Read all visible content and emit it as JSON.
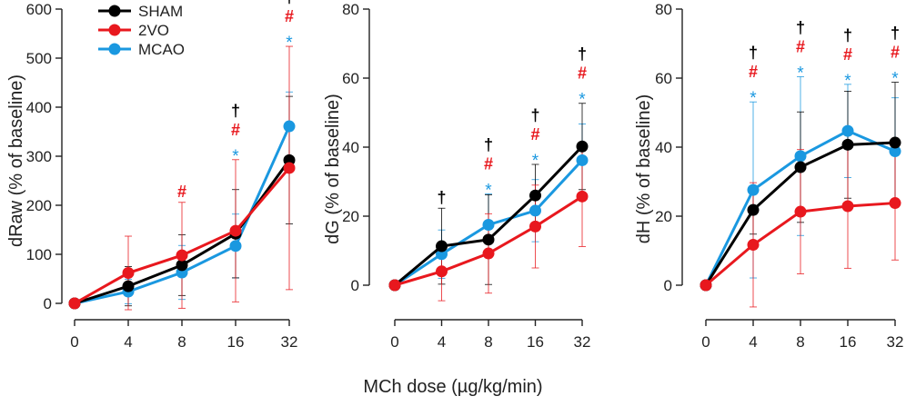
{
  "figure": {
    "xlabel_shared": "MCh dose (µg/kg/min)",
    "colors": {
      "SHAM": "#000000",
      "2VO": "#e8181e",
      "MCAO": "#1a98e0"
    },
    "legend": [
      {
        "name": "SHAM",
        "color": "#000000"
      },
      {
        "name": "2VO",
        "color": "#e8181e"
      },
      {
        "name": "MCAO",
        "color": "#1a98e0"
      }
    ]
  },
  "chart_data": [
    {
      "type": "line",
      "title": "",
      "xlabel": "MCh dose (µg/kg/min)",
      "ylabel": "dRaw (% of baseline)",
      "categories": [
        "0",
        "4",
        "8",
        "16",
        "32"
      ],
      "ylim": [
        0,
        600
      ],
      "yticks": [
        0,
        100,
        200,
        300,
        400,
        500,
        600
      ],
      "legend_position": "top-left",
      "series": [
        {
          "name": "SHAM",
          "values": [
            0,
            35,
            78,
            142,
            292
          ],
          "err": [
            0,
            40,
            62,
            90,
            130
          ]
        },
        {
          "name": "2VO",
          "values": [
            0,
            62,
            98,
            148,
            276
          ],
          "err": [
            0,
            75,
            108,
            145,
            248
          ]
        },
        {
          "name": "MCAO",
          "values": [
            0,
            24,
            63,
            117,
            361
          ],
          "err": [
            0,
            25,
            55,
            65,
            70
          ]
        }
      ],
      "annotations": [
        {
          "cat": 2,
          "marks": [
            {
              "text": "#",
              "series": "2VO"
            }
          ]
        },
        {
          "cat": 3,
          "marks": [
            {
              "text": "†",
              "series": "SHAM"
            },
            {
              "text": "#",
              "series": "2VO"
            },
            {
              "text": "*",
              "series": "MCAO"
            }
          ]
        },
        {
          "cat": 4,
          "marks": [
            {
              "text": "†",
              "series": "SHAM"
            },
            {
              "text": "#",
              "series": "2VO"
            },
            {
              "text": "*",
              "series": "MCAO"
            }
          ]
        }
      ]
    },
    {
      "type": "line",
      "title": "",
      "xlabel": "MCh dose (µg/kg/min)",
      "ylabel": "dG (% of baseline)",
      "categories": [
        "0",
        "4",
        "8",
        "16",
        "32"
      ],
      "ylim": [
        -10,
        80
      ],
      "yticks": [
        0,
        20,
        40,
        60,
        80
      ],
      "legend_position": "none",
      "series": [
        {
          "name": "SHAM",
          "values": [
            0,
            11.3,
            13.2,
            26,
            40.2
          ],
          "err": [
            0,
            11,
            13,
            9,
            12.5
          ]
        },
        {
          "name": "2VO",
          "values": [
            0,
            4,
            9.2,
            17,
            25.7
          ],
          "err": [
            0,
            8.5,
            11.5,
            12,
            14.5
          ]
        },
        {
          "name": "MCAO",
          "values": [
            0,
            9,
            17.5,
            21.6,
            36.2
          ],
          "err": [
            0,
            7,
            9,
            9,
            10.5
          ]
        }
      ],
      "annotations": [
        {
          "cat": 1,
          "marks": [
            {
              "text": "†",
              "series": "SHAM"
            }
          ]
        },
        {
          "cat": 2,
          "marks": [
            {
              "text": "†",
              "series": "SHAM"
            },
            {
              "text": "#",
              "series": "2VO"
            },
            {
              "text": "*",
              "series": "MCAO"
            }
          ]
        },
        {
          "cat": 3,
          "marks": [
            {
              "text": "†",
              "series": "SHAM"
            },
            {
              "text": "#",
              "series": "2VO"
            },
            {
              "text": "*",
              "series": "MCAO"
            }
          ]
        },
        {
          "cat": 4,
          "marks": [
            {
              "text": "†",
              "series": "SHAM"
            },
            {
              "text": "#",
              "series": "2VO"
            },
            {
              "text": "*",
              "series": "MCAO"
            }
          ]
        }
      ]
    },
    {
      "type": "line",
      "title": "",
      "xlabel": "MCh dose (µg/kg/min)",
      "ylabel": "dH (% of baseline)",
      "categories": [
        "0",
        "4",
        "8",
        "16",
        "32"
      ],
      "ylim": [
        -10,
        80
      ],
      "yticks": [
        0,
        20,
        40,
        60,
        80
      ],
      "legend_position": "none",
      "series": [
        {
          "name": "SHAM",
          "values": [
            0,
            21.8,
            34.2,
            40.7,
            41.3
          ],
          "err": [
            0,
            7,
            16,
            15.5,
            17.5
          ]
        },
        {
          "name": "2VO",
          "values": [
            0,
            11.7,
            21.3,
            22.9,
            23.8
          ],
          "err": [
            0,
            18,
            18,
            18,
            16.5
          ]
        },
        {
          "name": "MCAO",
          "values": [
            0,
            27.6,
            37.4,
            44.7,
            38.8
          ],
          "err": [
            0,
            25.5,
            23,
            13.5,
            15.5
          ]
        }
      ],
      "annotations": [
        {
          "cat": 1,
          "marks": [
            {
              "text": "†",
              "series": "SHAM"
            },
            {
              "text": "#",
              "series": "2VO"
            },
            {
              "text": "*",
              "series": "MCAO"
            }
          ]
        },
        {
          "cat": 2,
          "marks": [
            {
              "text": "†",
              "series": "SHAM"
            },
            {
              "text": "#",
              "series": "2VO"
            },
            {
              "text": "*",
              "series": "MCAO"
            }
          ]
        },
        {
          "cat": 3,
          "marks": [
            {
              "text": "†",
              "series": "SHAM"
            },
            {
              "text": "#",
              "series": "2VO"
            },
            {
              "text": "*",
              "series": "MCAO"
            }
          ]
        },
        {
          "cat": 4,
          "marks": [
            {
              "text": "†",
              "series": "SHAM"
            },
            {
              "text": "#",
              "series": "2VO"
            },
            {
              "text": "*",
              "series": "MCAO"
            }
          ]
        }
      ]
    }
  ]
}
